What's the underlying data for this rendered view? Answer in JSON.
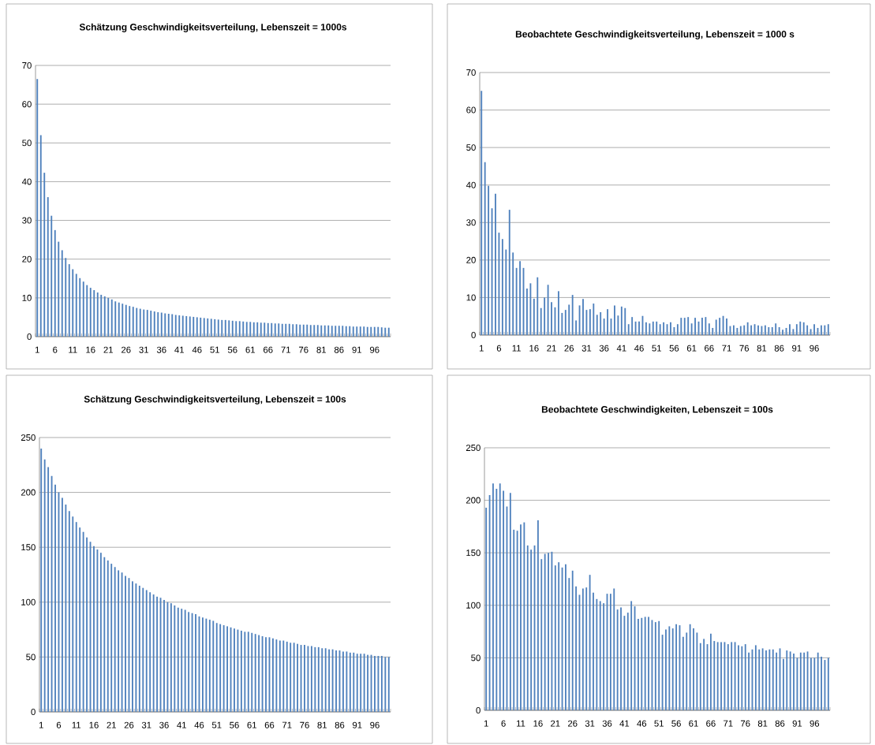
{
  "chart_data": [
    {
      "type": "bar",
      "title": "Schätzung Geschwindigkeitsverteilung, Lebenszeit = 1000s",
      "color": "#4f81bd",
      "grid": "y",
      "ylim": [
        0,
        70
      ],
      "yticks": [
        0,
        10,
        20,
        30,
        40,
        50,
        60,
        70
      ],
      "categories": [
        "1",
        null,
        null,
        null,
        null,
        "6",
        null,
        null,
        null,
        null,
        "11",
        null,
        null,
        null,
        null,
        "16",
        null,
        null,
        null,
        null,
        "21",
        null,
        null,
        null,
        null,
        "26",
        null,
        null,
        null,
        null,
        "31",
        null,
        null,
        null,
        null,
        "36",
        null,
        null,
        null,
        null,
        "41",
        null,
        null,
        null,
        null,
        "46",
        null,
        null,
        null,
        null,
        "51",
        null,
        null,
        null,
        null,
        "56",
        null,
        null,
        null,
        null,
        "61",
        null,
        null,
        null,
        null,
        "66",
        null,
        null,
        null,
        null,
        "71",
        null,
        null,
        null,
        null,
        "76",
        null,
        null,
        null,
        null,
        "81",
        null,
        null,
        null,
        null,
        "86",
        null,
        null,
        null,
        null,
        "91",
        null,
        null,
        null,
        null,
        "96",
        null,
        null,
        null,
        null
      ],
      "values": [
        66.5,
        52,
        42.3,
        36,
        31.2,
        27.5,
        24.5,
        22.3,
        20.3,
        18.7,
        17.4,
        16.2,
        15.1,
        14.2,
        13.3,
        12.6,
        12.0,
        11.4,
        10.8,
        10.4,
        10.0,
        9.6,
        9.1,
        8.8,
        8.5,
        8.2,
        7.9,
        7.7,
        7.4,
        7.2,
        7.0,
        6.9,
        6.7,
        6.5,
        6.3,
        6.2,
        6.0,
        5.9,
        5.8,
        5.6,
        5.5,
        5.4,
        5.3,
        5.2,
        5.1,
        5.0,
        4.9,
        4.8,
        4.7,
        4.6,
        4.5,
        4.4,
        4.3,
        4.3,
        4.2,
        4.1,
        4.0,
        4.0,
        3.9,
        3.8,
        3.8,
        3.7,
        3.7,
        3.6,
        3.6,
        3.5,
        3.5,
        3.4,
        3.4,
        3.3,
        3.3,
        3.3,
        3.2,
        3.2,
        3.1,
        3.1,
        3.1,
        3.0,
        3.0,
        3.0,
        2.9,
        2.9,
        2.9,
        2.8,
        2.8,
        2.8,
        2.8,
        2.7,
        2.7,
        2.6,
        2.6,
        2.6,
        2.6,
        2.5,
        2.5,
        2.5,
        2.5,
        2.4,
        2.3,
        2.3
      ]
    },
    {
      "type": "bar",
      "title": "Beobachtete Geschwindigkeitsverteilung, Lebenszeit = 1000 s",
      "color": "#4f81bd",
      "grid": "y",
      "ylim": [
        0,
        70
      ],
      "yticks": [
        0,
        10,
        20,
        30,
        40,
        50,
        60,
        70
      ],
      "categories": [
        "1",
        null,
        null,
        null,
        null,
        "6",
        null,
        null,
        null,
        null,
        "11",
        null,
        null,
        null,
        null,
        "16",
        null,
        null,
        null,
        null,
        "21",
        null,
        null,
        null,
        null,
        "26",
        null,
        null,
        null,
        null,
        "31",
        null,
        null,
        null,
        null,
        "36",
        null,
        null,
        null,
        null,
        "41",
        null,
        null,
        null,
        null,
        "46",
        null,
        null,
        null,
        null,
        "51",
        null,
        null,
        null,
        null,
        "56",
        null,
        null,
        null,
        null,
        "61",
        null,
        null,
        null,
        null,
        "66",
        null,
        null,
        null,
        null,
        "71",
        null,
        null,
        null,
        null,
        "76",
        null,
        null,
        null,
        null,
        "81",
        null,
        null,
        null,
        null,
        "86",
        null,
        null,
        null,
        null,
        "91",
        null,
        null,
        null,
        null,
        "96",
        null,
        null,
        null,
        null
      ],
      "values": [
        65.1,
        46.1,
        39.8,
        33.8,
        37.7,
        27.3,
        25.6,
        22.8,
        33.4,
        22.0,
        17.9,
        19.7,
        17.9,
        12.4,
        13.8,
        9.7,
        15.4,
        7.2,
        10.0,
        13.4,
        8.8,
        7.4,
        11.7,
        5.9,
        6.7,
        8.1,
        10.7,
        3.9,
        7.9,
        9.6,
        6.7,
        6.9,
        8.4,
        5.4,
        6.1,
        4.4,
        6.9,
        4.4,
        7.9,
        5.2,
        7.6,
        7.2,
        2.9,
        4.8,
        3.6,
        3.6,
        5.1,
        3.4,
        3.1,
        3.6,
        3.6,
        2.9,
        3.4,
        2.9,
        3.4,
        2.1,
        2.9,
        4.6,
        4.6,
        4.8,
        3.1,
        4.6,
        3.6,
        4.6,
        4.8,
        3.1,
        1.9,
        4.1,
        4.6,
        5.1,
        4.4,
        2.4,
        2.6,
        1.9,
        2.4,
        2.6,
        3.4,
        2.6,
        2.9,
        2.6,
        2.4,
        2.6,
        2.1,
        2.1,
        3.1,
        2.1,
        1.4,
        1.9,
        2.9,
        1.6,
        2.9,
        3.6,
        3.4,
        2.6,
        1.6,
        2.9,
        1.9,
        2.6,
        2.6,
        2.9
      ]
    },
    {
      "type": "bar",
      "title": "Schätzung Geschwindigkeitsverteilung, Lebenszeit = 100s",
      "color": "#4f81bd",
      "grid": "y",
      "ylim": [
        0,
        250
      ],
      "yticks": [
        0,
        50,
        100,
        150,
        200,
        250
      ],
      "categories": [
        "1",
        null,
        null,
        null,
        null,
        "6",
        null,
        null,
        null,
        null,
        "11",
        null,
        null,
        null,
        null,
        "16",
        null,
        null,
        null,
        null,
        "21",
        null,
        null,
        null,
        null,
        "26",
        null,
        null,
        null,
        null,
        "31",
        null,
        null,
        null,
        null,
        "36",
        null,
        null,
        null,
        null,
        "41",
        null,
        null,
        null,
        null,
        "46",
        null,
        null,
        null,
        null,
        "51",
        null,
        null,
        null,
        null,
        "56",
        null,
        null,
        null,
        null,
        "61",
        null,
        null,
        null,
        null,
        "66",
        null,
        null,
        null,
        null,
        "71",
        null,
        null,
        null,
        null,
        "76",
        null,
        null,
        null,
        null,
        "81",
        null,
        null,
        null,
        null,
        "86",
        null,
        null,
        null,
        null,
        "91",
        null,
        null,
        null,
        null,
        "96",
        null,
        null,
        null,
        null
      ],
      "values": [
        240,
        230,
        223,
        215,
        207,
        200,
        195,
        189,
        183,
        178,
        173,
        168,
        164,
        159,
        155,
        151,
        148,
        145,
        141,
        138,
        135,
        132,
        129,
        127,
        124,
        122,
        119,
        117,
        115,
        113,
        111,
        109,
        107,
        105,
        104,
        102,
        100,
        99,
        97,
        95,
        94,
        93,
        91,
        90,
        89,
        87,
        86,
        85,
        84,
        83,
        81,
        80,
        79,
        78,
        77,
        76,
        75,
        74,
        73,
        73,
        72,
        71,
        70,
        69,
        68,
        68,
        67,
        66,
        65,
        65,
        64,
        63,
        63,
        62,
        61,
        61,
        60,
        60,
        59,
        59,
        58,
        58,
        57,
        57,
        56,
        56,
        55,
        55,
        54,
        54,
        53,
        53,
        53,
        52,
        52,
        51,
        51,
        51,
        50,
        50
      ]
    },
    {
      "type": "bar",
      "title": "Beobachtete Geschwindigkeiten, Lebenszeit = 100s",
      "color": "#4f81bd",
      "grid": "y",
      "ylim": [
        0,
        250
      ],
      "yticks": [
        0,
        50,
        100,
        150,
        200,
        250
      ],
      "categories": [
        "1",
        null,
        null,
        null,
        null,
        "6",
        null,
        null,
        null,
        null,
        "11",
        null,
        null,
        null,
        null,
        "16",
        null,
        null,
        null,
        null,
        "21",
        null,
        null,
        null,
        null,
        "26",
        null,
        null,
        null,
        null,
        "31",
        null,
        null,
        null,
        null,
        "36",
        null,
        null,
        null,
        null,
        "41",
        null,
        null,
        null,
        null,
        "46",
        null,
        null,
        null,
        null,
        "51",
        null,
        null,
        null,
        null,
        "56",
        null,
        null,
        null,
        null,
        "61",
        null,
        null,
        null,
        null,
        "66",
        null,
        null,
        null,
        null,
        "71",
        null,
        null,
        null,
        null,
        "76",
        null,
        null,
        null,
        null,
        "81",
        null,
        null,
        null,
        null,
        "86",
        null,
        null,
        null,
        null,
        "91",
        null,
        null,
        null,
        null,
        "96",
        null,
        null,
        null,
        null
      ],
      "values": [
        193,
        205,
        216,
        211,
        216,
        209,
        194,
        207,
        172,
        171,
        177,
        179,
        157,
        153,
        157,
        181,
        144,
        149,
        150,
        151,
        138,
        141,
        136,
        139,
        126,
        133,
        118,
        110,
        116,
        117,
        129,
        112,
        106,
        104,
        102,
        111,
        111,
        116,
        96,
        98,
        90,
        93,
        104,
        99,
        87,
        88,
        89,
        89,
        86,
        84,
        85,
        72,
        77,
        80,
        78,
        82,
        81,
        70,
        74,
        82,
        78,
        74,
        64,
        68,
        63,
        73,
        66,
        65,
        65,
        65,
        63,
        65,
        65,
        62,
        61,
        63,
        55,
        58,
        62,
        58,
        59,
        57,
        58,
        58,
        55,
        59,
        49,
        57,
        56,
        54,
        50,
        55,
        55,
        56,
        50,
        50,
        55,
        51,
        48,
        50
      ]
    }
  ]
}
